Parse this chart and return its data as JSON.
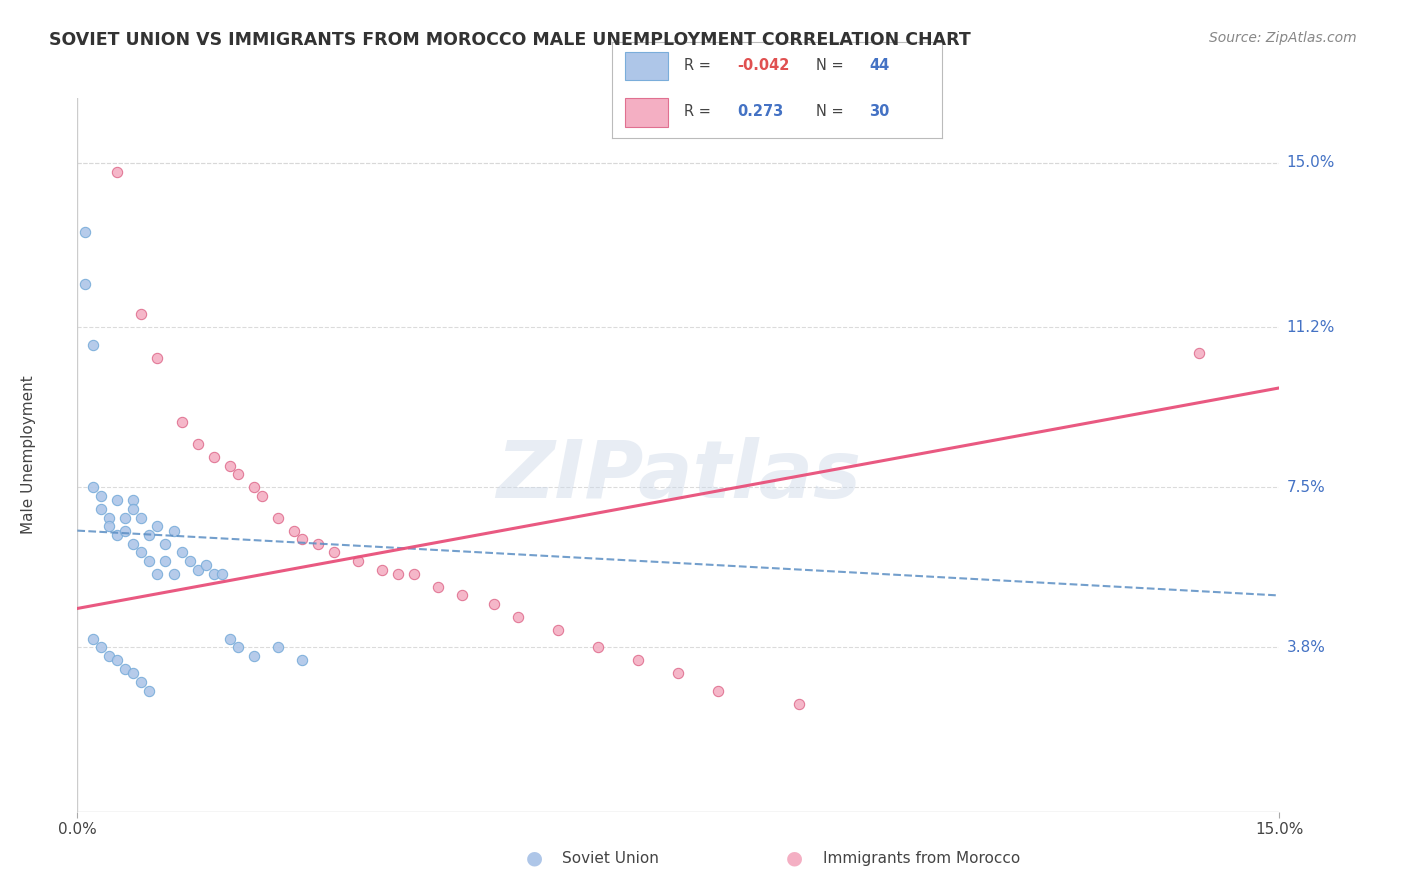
{
  "title": "SOVIET UNION VS IMMIGRANTS FROM MOROCCO MALE UNEMPLOYMENT CORRELATION CHART",
  "source": "Source: ZipAtlas.com",
  "ylabel": "Male Unemployment",
  "ytick_values": [
    0.15,
    0.112,
    0.075,
    0.038
  ],
  "ytick_labels": [
    "15.0%",
    "11.2%",
    "7.5%",
    "3.8%"
  ],
  "xmin": 0.0,
  "xmax": 0.15,
  "ymin": 0.0,
  "ymax": 0.165,
  "watermark": "ZIPatlas",
  "soviet_color": "#aec6e8",
  "soviet_edge": "#7aadda",
  "morocco_color": "#f4afc3",
  "morocco_edge": "#e07090",
  "soviet_line_color": "#5b8ec4",
  "morocco_line_color": "#e8507a",
  "background_color": "#ffffff",
  "grid_color": "#d8d8d8",
  "soviet_r": "-0.042",
  "soviet_n": "44",
  "morocco_r": "0.273",
  "morocco_n": "30",
  "soviet_x": [
    0.001,
    0.001,
    0.002,
    0.002,
    0.003,
    0.003,
    0.004,
    0.004,
    0.005,
    0.005,
    0.006,
    0.006,
    0.007,
    0.007,
    0.007,
    0.008,
    0.008,
    0.009,
    0.009,
    0.01,
    0.01,
    0.011,
    0.011,
    0.012,
    0.012,
    0.013,
    0.014,
    0.015,
    0.016,
    0.017,
    0.018,
    0.019,
    0.02,
    0.022,
    0.025,
    0.028,
    0.002,
    0.003,
    0.004,
    0.005,
    0.006,
    0.007,
    0.008,
    0.009
  ],
  "soviet_y": [
    0.134,
    0.122,
    0.108,
    0.075,
    0.073,
    0.07,
    0.068,
    0.066,
    0.072,
    0.064,
    0.068,
    0.065,
    0.072,
    0.07,
    0.062,
    0.068,
    0.06,
    0.064,
    0.058,
    0.066,
    0.055,
    0.062,
    0.058,
    0.065,
    0.055,
    0.06,
    0.058,
    0.056,
    0.057,
    0.055,
    0.055,
    0.04,
    0.038,
    0.036,
    0.038,
    0.035,
    0.04,
    0.038,
    0.036,
    0.035,
    0.033,
    0.032,
    0.03,
    0.028
  ],
  "morocco_x": [
    0.005,
    0.008,
    0.01,
    0.013,
    0.015,
    0.017,
    0.019,
    0.02,
    0.022,
    0.023,
    0.025,
    0.027,
    0.028,
    0.03,
    0.032,
    0.035,
    0.038,
    0.04,
    0.042,
    0.045,
    0.048,
    0.052,
    0.055,
    0.06,
    0.065,
    0.07,
    0.075,
    0.08,
    0.09,
    0.14
  ],
  "morocco_y": [
    0.148,
    0.115,
    0.105,
    0.09,
    0.085,
    0.082,
    0.08,
    0.078,
    0.075,
    0.073,
    0.068,
    0.065,
    0.063,
    0.062,
    0.06,
    0.058,
    0.056,
    0.055,
    0.055,
    0.052,
    0.05,
    0.048,
    0.045,
    0.042,
    0.038,
    0.035,
    0.032,
    0.028,
    0.025,
    0.106
  ],
  "soviet_line_x": [
    0.0,
    0.15
  ],
  "soviet_line_y": [
    0.065,
    0.05
  ],
  "morocco_line_x": [
    0.0,
    0.15
  ],
  "morocco_line_y": [
    0.047,
    0.098
  ]
}
